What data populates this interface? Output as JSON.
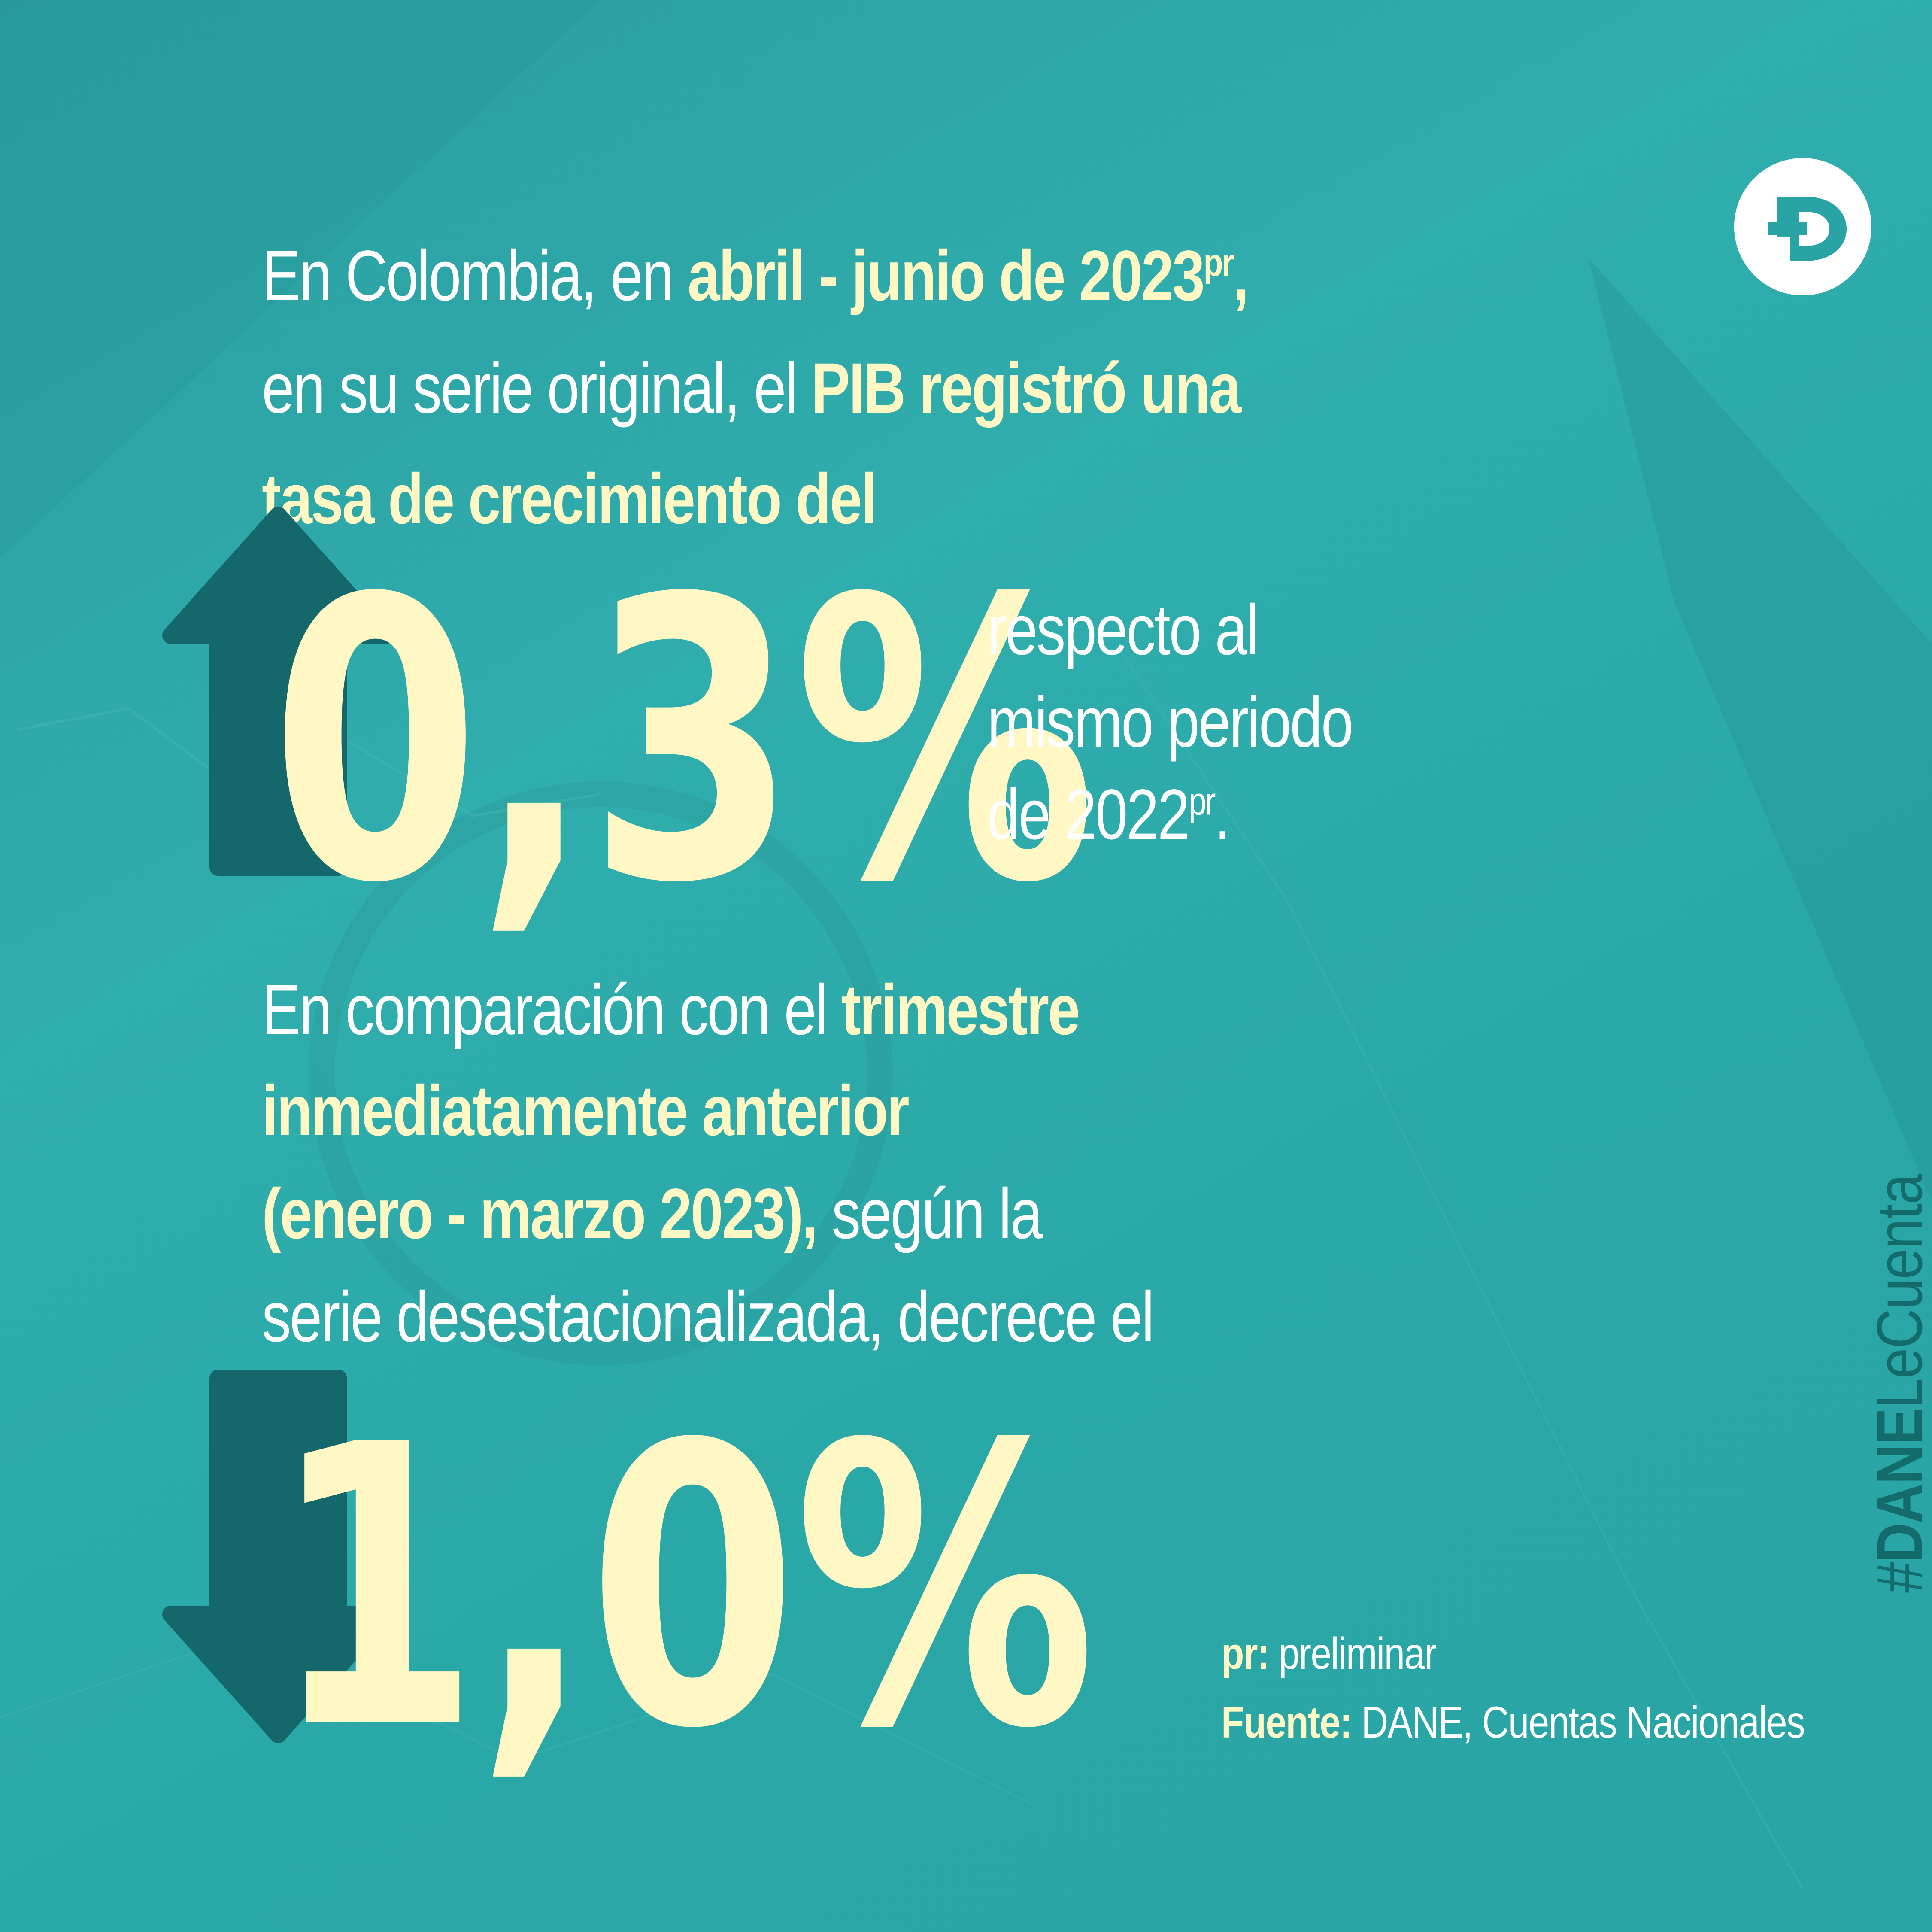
{
  "logo": {
    "name": "dane-logo",
    "letter": "D"
  },
  "headline": {
    "l1_plain": "En Colombia, en ",
    "l1_bold": "abril - junio de 2023",
    "l1_sup": "pr",
    "l1_end": ",",
    "l2_plain": "en su serie original, el ",
    "l2_bold": "PIB registró una",
    "l3_bold": "tasa de crecimiento del"
  },
  "stat_annual": {
    "value": "0,3%",
    "direction": "up",
    "caption_l1": "respecto al",
    "caption_l2": "mismo periodo",
    "caption_l3": "de 2022",
    "caption_sup": "pr",
    "caption_end": "."
  },
  "comparison": {
    "l1_plain": "En comparación con el ",
    "l1_bold": "trimestre",
    "l2_bold": "inmediatamente anterior",
    "l3_bold": "(enero - marzo 2023),",
    "l3_plain": " según la",
    "l4_plain": "serie desestacionalizada, decrece el"
  },
  "stat_quarterly": {
    "value": "1,0%",
    "direction": "down"
  },
  "footnote": {
    "pr_key": "pr:",
    "pr_value": " preliminar",
    "source_key": "Fuente:",
    "source_value": " DANE, Cuentas Nacionales"
  },
  "hashtag": {
    "hash": "#",
    "bold": "DANE",
    "rest": "LeCuenta"
  },
  "colors": {
    "background": "#2aa7a7",
    "highlight": "#fff7c4",
    "arrow": "#14676a",
    "text": "#ffffff"
  },
  "icons": [
    "up-arrow-icon",
    "down-arrow-icon",
    "dane-logo"
  ]
}
